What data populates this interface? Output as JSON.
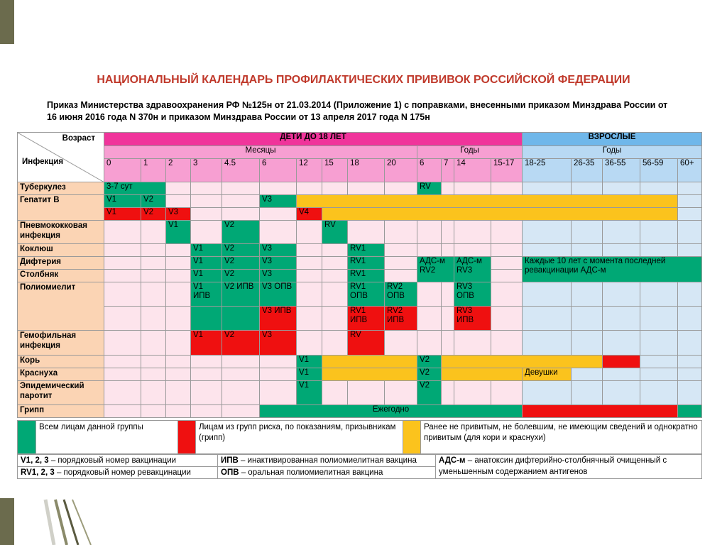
{
  "title": "НАЦИОНАЛЬНЫЙ КАЛЕНДАРЬ ПРОФИЛАКТИЧЕСКИХ ПРИВИВОК РОССИЙСКОЙ ФЕДЕРАЦИИ",
  "subtitle_line1": "Приказ Министерства здравоохранения РФ №125н от 21.03.2014 (Приложение 1) с поправками, внесенными приказом Минздрава России от",
  "subtitle_line2": "16 июня 2016 года N 370н и приказом Минздрава России от 13 апреля 2017 года N 175н",
  "colors": {
    "title": "#c0392b",
    "children_header": "#f0349b",
    "adults_header": "#6fb7ea",
    "green": "#00a875",
    "red": "#ef1010",
    "yellow": "#fbc31d",
    "deco": "#6b6b4d"
  },
  "header": {
    "age_label": "Возраст",
    "infection_label": "Инфекция",
    "children_group": "ДЕТИ ДО 18 ЛЕТ",
    "adults_group": "ВЗРОСЛЫЕ",
    "months_label": "Месяцы",
    "child_years_label": "Годы",
    "adult_years_label": "Годы",
    "columns": [
      "0",
      "1",
      "2",
      "3",
      "4.5",
      "6",
      "12",
      "15",
      "18",
      "20",
      "6",
      "7",
      "14",
      "15-17",
      "18-25",
      "26-35",
      "36-55",
      "56-59",
      "60+"
    ]
  },
  "rows": [
    {
      "infection": "Туберкулез",
      "cells": [
        {
          "s": 2,
          "c": "green",
          "t": "3-7 сут"
        },
        {
          "c": "w"
        },
        {
          "c": "w"
        },
        {
          "c": "w"
        },
        {
          "c": "w"
        },
        {
          "c": "w"
        },
        {
          "c": "w"
        },
        {
          "c": "w"
        },
        {
          "c": "w"
        },
        {
          "c": "green",
          "t": "RV"
        },
        {
          "c": "w"
        },
        {
          "c": "w"
        },
        {
          "c": "w"
        },
        {
          "c": "w"
        },
        {
          "c": "w"
        },
        {
          "c": "w"
        },
        {
          "c": "w"
        },
        {
          "c": "w"
        }
      ]
    },
    {
      "infection": "Гепатит В",
      "rowspan": 2,
      "cells": [
        {
          "c": "green",
          "t": "V1"
        },
        {
          "c": "green",
          "t": "V2"
        },
        {
          "c": "w"
        },
        {
          "c": "w"
        },
        {
          "c": "w"
        },
        {
          "c": "green",
          "t": "V3"
        },
        {
          "s": 12,
          "c": "yellow"
        },
        {
          "c": "w"
        },
        {
          "c": "w"
        }
      ]
    },
    {
      "cells": [
        {
          "c": "red",
          "t": "V1"
        },
        {
          "c": "red",
          "t": "V2"
        },
        {
          "c": "red",
          "t": "V3"
        },
        {
          "c": "w"
        },
        {
          "c": "w"
        },
        {
          "c": "w"
        },
        {
          "c": "red",
          "t": "V4"
        },
        {
          "s": 11,
          "c": "yellow"
        },
        {
          "c": "w"
        },
        {
          "c": "w"
        }
      ]
    },
    {
      "infection": "Пневмококковая инфекция",
      "cells": [
        {
          "c": "w"
        },
        {
          "c": "w"
        },
        {
          "c": "green",
          "t": "V1"
        },
        {
          "c": "w"
        },
        {
          "c": "green",
          "t": "V2"
        },
        {
          "c": "w"
        },
        {
          "c": "w"
        },
        {
          "c": "green",
          "t": "RV"
        },
        {
          "c": "w"
        },
        {
          "c": "w"
        },
        {
          "c": "w"
        },
        {
          "c": "w"
        },
        {
          "c": "w"
        },
        {
          "c": "w"
        },
        {
          "c": "w"
        },
        {
          "c": "w"
        },
        {
          "c": "w"
        },
        {
          "c": "w"
        },
        {
          "c": "w"
        }
      ]
    },
    {
      "infection": "Коклюш",
      "cells": [
        {
          "c": "w"
        },
        {
          "c": "w"
        },
        {
          "c": "w"
        },
        {
          "c": "green",
          "t": "V1"
        },
        {
          "c": "green",
          "t": "V2"
        },
        {
          "c": "green",
          "t": "V3"
        },
        {
          "c": "w"
        },
        {
          "c": "w"
        },
        {
          "c": "green",
          "t": "RV1"
        },
        {
          "c": "w"
        },
        {
          "c": "w"
        },
        {
          "c": "w"
        },
        {
          "c": "w"
        },
        {
          "c": "w"
        },
        {
          "c": "w"
        },
        {
          "c": "w"
        },
        {
          "c": "w"
        },
        {
          "c": "w"
        },
        {
          "c": "w"
        }
      ]
    },
    {
      "infection": "Дифтерия",
      "cells": [
        {
          "c": "w"
        },
        {
          "c": "w"
        },
        {
          "c": "w"
        },
        {
          "c": "green",
          "t": "V1"
        },
        {
          "c": "green",
          "t": "V2"
        },
        {
          "c": "green",
          "t": "V3"
        },
        {
          "c": "w"
        },
        {
          "c": "w"
        },
        {
          "c": "green",
          "t": "RV1"
        },
        {
          "c": "w"
        },
        {
          "s": 2,
          "r": 2,
          "c": "green",
          "t": "АДС-м RV2",
          "wrap": true
        },
        {
          "r": 2,
          "c": "green",
          "t": "АДС-м RV3",
          "wrap": true
        },
        {
          "c": "w"
        },
        {
          "s": 5,
          "r": 2,
          "c": "green",
          "t": "Каждые 10 лет с момента последней ревакцинации АДС-м",
          "wrap": true
        }
      ]
    },
    {
      "infection": "Столбняк",
      "cells": [
        {
          "c": "w"
        },
        {
          "c": "w"
        },
        {
          "c": "w"
        },
        {
          "c": "green",
          "t": "V1"
        },
        {
          "c": "green",
          "t": "V2"
        },
        {
          "c": "green",
          "t": "V3"
        },
        {
          "c": "w"
        },
        {
          "c": "w"
        },
        {
          "c": "green",
          "t": "RV1"
        },
        {
          "c": "w"
        },
        {
          "c": "w"
        }
      ]
    },
    {
      "infection": "Полиомиелит",
      "rowspan": 2,
      "cells": [
        {
          "c": "w"
        },
        {
          "c": "w"
        },
        {
          "c": "w"
        },
        {
          "c": "green",
          "t": "V1 ИПВ",
          "wrap": true
        },
        {
          "c": "green",
          "t": "V2 ИПВ",
          "wrap": true
        },
        {
          "c": "green",
          "t": "V3 ОПВ",
          "wrap": true
        },
        {
          "c": "w"
        },
        {
          "c": "w"
        },
        {
          "c": "green",
          "t": "RV1 ОПВ",
          "wrap": true
        },
        {
          "c": "green",
          "t": "RV2 ОПВ",
          "wrap": true
        },
        {
          "c": "w"
        },
        {
          "c": "w"
        },
        {
          "c": "green",
          "t": "RV3 ОПВ",
          "wrap": true
        },
        {
          "c": "w"
        },
        {
          "c": "w"
        },
        {
          "c": "w"
        },
        {
          "c": "w"
        },
        {
          "c": "w"
        },
        {
          "c": "w"
        }
      ]
    },
    {
      "cells": [
        {
          "c": "w"
        },
        {
          "c": "w"
        },
        {
          "c": "w"
        },
        {
          "c": "green"
        },
        {
          "c": "green"
        },
        {
          "c": "red",
          "t": "V3 ИПВ",
          "wrap": true
        },
        {
          "c": "w"
        },
        {
          "c": "w"
        },
        {
          "c": "red",
          "t": "RV1 ИПВ",
          "wrap": true
        },
        {
          "c": "red",
          "t": "RV2 ИПВ",
          "wrap": true
        },
        {
          "c": "w"
        },
        {
          "c": "w"
        },
        {
          "c": "red",
          "t": "RV3 ИПВ",
          "wrap": true
        },
        {
          "c": "w"
        },
        {
          "c": "w"
        },
        {
          "c": "w"
        },
        {
          "c": "w"
        },
        {
          "c": "w"
        },
        {
          "c": "w"
        }
      ]
    },
    {
      "infection": "Гемофильная инфекция",
      "cells": [
        {
          "c": "w"
        },
        {
          "c": "w"
        },
        {
          "c": "w"
        },
        {
          "c": "red",
          "t": "V1"
        },
        {
          "c": "red",
          "t": "V2"
        },
        {
          "c": "red",
          "t": "V3"
        },
        {
          "c": "w"
        },
        {
          "c": "w"
        },
        {
          "c": "red",
          "t": "RV"
        },
        {
          "c": "w"
        },
        {
          "c": "w"
        },
        {
          "c": "w"
        },
        {
          "c": "w"
        },
        {
          "c": "w"
        },
        {
          "c": "w"
        },
        {
          "c": "w"
        },
        {
          "c": "w"
        },
        {
          "c": "w"
        },
        {
          "c": "w"
        }
      ]
    },
    {
      "infection": "Корь",
      "cells": [
        {
          "c": "w"
        },
        {
          "c": "w"
        },
        {
          "c": "w"
        },
        {
          "c": "w"
        },
        {
          "c": "w"
        },
        {
          "c": "w"
        },
        {
          "c": "green",
          "t": "V1"
        },
        {
          "s": 3,
          "c": "yellow"
        },
        {
          "c": "green",
          "t": "V2"
        },
        {
          "s": 5,
          "c": "yellow"
        },
        {
          "c": "red"
        },
        {
          "c": "w"
        },
        {
          "c": "w"
        }
      ]
    },
    {
      "infection": "Краснуха",
      "cells": [
        {
          "c": "w"
        },
        {
          "c": "w"
        },
        {
          "c": "w"
        },
        {
          "c": "w"
        },
        {
          "c": "w"
        },
        {
          "c": "w"
        },
        {
          "c": "green",
          "t": "V1"
        },
        {
          "s": 3,
          "c": "yellow"
        },
        {
          "c": "green",
          "t": "V2"
        },
        {
          "s": 3,
          "c": "yellow"
        },
        {
          "c": "yellow",
          "t": "Девушки"
        },
        {
          "c": "w"
        },
        {
          "c": "w"
        },
        {
          "c": "w"
        },
        {
          "c": "w"
        }
      ]
    },
    {
      "infection": "Эпидемический паротит",
      "cells": [
        {
          "c": "w"
        },
        {
          "c": "w"
        },
        {
          "c": "w"
        },
        {
          "c": "w"
        },
        {
          "c": "w"
        },
        {
          "c": "w"
        },
        {
          "c": "green",
          "t": "V1"
        },
        {
          "c": "w"
        },
        {
          "c": "w"
        },
        {
          "c": "w"
        },
        {
          "c": "green",
          "t": "V2"
        },
        {
          "c": "w"
        },
        {
          "c": "w"
        },
        {
          "c": "w"
        },
        {
          "c": "w"
        },
        {
          "c": "w"
        },
        {
          "c": "w"
        },
        {
          "c": "w"
        },
        {
          "c": "w"
        }
      ]
    },
    {
      "infection": "Грипп",
      "cells": [
        {
          "c": "w"
        },
        {
          "c": "w"
        },
        {
          "c": "w"
        },
        {
          "c": "w"
        },
        {
          "c": "w"
        },
        {
          "s": 9,
          "c": "green",
          "t": "Ежегодно",
          "center": true
        },
        {
          "s": 4,
          "c": "red"
        },
        {
          "c": "green"
        }
      ]
    }
  ],
  "legend": {
    "green_text": "Всем лицам данной группы",
    "red_text": "Лицам из групп риска, по показаниям, призывникам (грипп)",
    "yellow_text": "Ранее не привитым, не болевшим, не имеющим сведений и однократно привитым (для кори и краснухи)"
  },
  "abbreviations": {
    "v_term": "V1, 2, 3",
    "v_desc": " – порядковый номер вакцинации",
    "rv_term": "RV1, 2, 3",
    "rv_desc": " – порядковый номер ревакцинации",
    "ipv_term": "ИПВ",
    "ipv_desc": " – инактивированная полиомиелитная вакцина",
    "opv_term": "ОПВ",
    "opv_desc": " – оральная полиомиелитная вакцина",
    "ads_term": "АДС-м",
    "ads_desc": " – анатоксин дифтерийно-столбнячный очищенный с уменьшенным содержанием антигенов"
  }
}
